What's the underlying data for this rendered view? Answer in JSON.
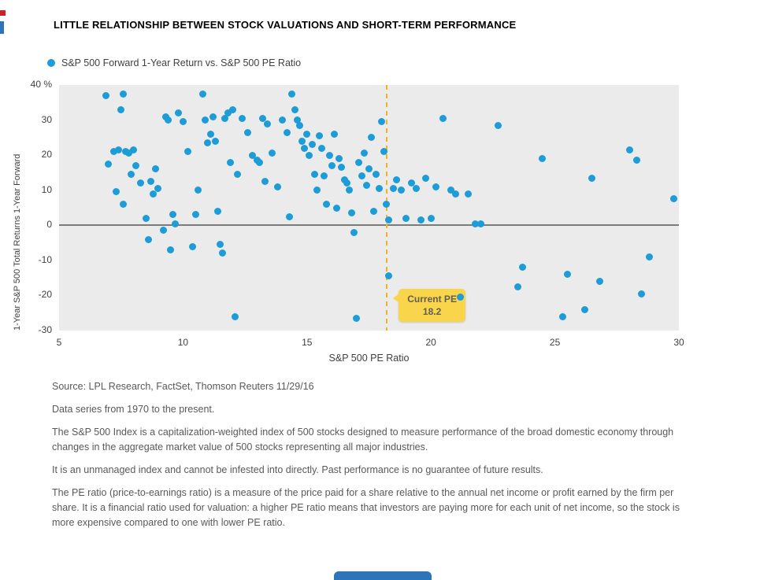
{
  "title": "LITTLE RELATIONSHIP BETWEEN STOCK VALUATIONS AND SHORT-TERM PERFORMANCE",
  "legend": {
    "label": "S&P 500 Forward 1-Year Return vs. S&P 500 PE Ratio"
  },
  "chart_data": {
    "type": "scatter",
    "title": "S&P 500 Forward 1-Year Return vs. S&P 500 PE Ratio",
    "xlabel": "S&P 500 PE Ratio",
    "ylabel": "1-Year S&P 500 Total Returns 1-Year Forward",
    "xlim": [
      5,
      30
    ],
    "ylim": [
      -30,
      40
    ],
    "x_ticks": [
      5,
      10,
      15,
      20,
      25,
      30
    ],
    "y_ticks": [
      {
        "v": 40,
        "label": "40 %"
      },
      {
        "v": 30,
        "label": "30"
      },
      {
        "v": 20,
        "label": "20"
      },
      {
        "v": 10,
        "label": "10"
      },
      {
        "v": 0,
        "label": "0"
      },
      {
        "v": -10,
        "label": "-10"
      },
      {
        "v": -20,
        "label": "-20"
      },
      {
        "v": -30,
        "label": "-30"
      }
    ],
    "grid": false,
    "legend_position": "top-left",
    "zero_line": 0,
    "current_pe": 18.2,
    "annotation": {
      "line1": "Current PE",
      "line2": "18.2",
      "anchor_x": 18.7,
      "anchor_y": -18
    },
    "colors": {
      "dot": "#1d9cd8",
      "plot_bg": "#ebebeb",
      "dashed_line": "#f0b323",
      "annotation_bg": "#f8d54b",
      "zero_line": "#7b7b7b"
    },
    "points": [
      [
        6.9,
        37
      ],
      [
        7.5,
        33
      ],
      [
        7.6,
        37.5
      ],
      [
        7.0,
        17.5
      ],
      [
        7.2,
        21
      ],
      [
        7.4,
        21.5
      ],
      [
        7.7,
        21
      ],
      [
        7.8,
        20.5
      ],
      [
        7.3,
        9.5
      ],
      [
        7.6,
        6
      ],
      [
        7.9,
        14.5
      ],
      [
        8.0,
        21.5
      ],
      [
        8.1,
        17
      ],
      [
        8.3,
        12
      ],
      [
        8.5,
        2
      ],
      [
        8.6,
        -4
      ],
      [
        8.7,
        12.5
      ],
      [
        8.8,
        9
      ],
      [
        8.9,
        16
      ],
      [
        9.0,
        10.5
      ],
      [
        9.2,
        -1.5
      ],
      [
        9.3,
        31
      ],
      [
        9.4,
        30
      ],
      [
        9.5,
        -7
      ],
      [
        9.6,
        3
      ],
      [
        9.7,
        0.5
      ],
      [
        9.8,
        32
      ],
      [
        10.0,
        29.5
      ],
      [
        10.2,
        21
      ],
      [
        10.4,
        -6
      ],
      [
        10.5,
        3
      ],
      [
        10.6,
        10
      ],
      [
        10.8,
        37.5
      ],
      [
        10.9,
        30
      ],
      [
        11.0,
        23.5
      ],
      [
        11.1,
        26
      ],
      [
        11.2,
        31
      ],
      [
        11.3,
        24
      ],
      [
        11.4,
        4
      ],
      [
        11.5,
        -5.5
      ],
      [
        11.6,
        -8
      ],
      [
        11.7,
        30.5
      ],
      [
        11.8,
        32
      ],
      [
        11.9,
        18
      ],
      [
        12.0,
        33
      ],
      [
        12.1,
        -26
      ],
      [
        12.2,
        14.5
      ],
      [
        12.4,
        30.5
      ],
      [
        12.6,
        26.5
      ],
      [
        12.8,
        20
      ],
      [
        13.0,
        18.5
      ],
      [
        13.1,
        18
      ],
      [
        13.2,
        30.5
      ],
      [
        13.3,
        12.5
      ],
      [
        13.4,
        29
      ],
      [
        13.6,
        20.5
      ],
      [
        13.8,
        11
      ],
      [
        14.0,
        30
      ],
      [
        14.2,
        26.5
      ],
      [
        14.3,
        2.5
      ],
      [
        14.4,
        37.5
      ],
      [
        14.5,
        33
      ],
      [
        14.6,
        30
      ],
      [
        14.7,
        28.5
      ],
      [
        14.8,
        24
      ],
      [
        14.9,
        22
      ],
      [
        15.0,
        26
      ],
      [
        15.1,
        20
      ],
      [
        15.2,
        23
      ],
      [
        15.3,
        14.5
      ],
      [
        15.4,
        10
      ],
      [
        15.5,
        25.5
      ],
      [
        15.6,
        22
      ],
      [
        15.7,
        14
      ],
      [
        15.8,
        6
      ],
      [
        15.9,
        20
      ],
      [
        16.0,
        17
      ],
      [
        16.1,
        26
      ],
      [
        16.2,
        5
      ],
      [
        16.3,
        19
      ],
      [
        16.4,
        16.5
      ],
      [
        16.5,
        13
      ],
      [
        16.6,
        12
      ],
      [
        16.7,
        10
      ],
      [
        16.8,
        3.5
      ],
      [
        16.9,
        -2
      ],
      [
        17.0,
        -26.5
      ],
      [
        17.1,
        18
      ],
      [
        17.2,
        14
      ],
      [
        17.3,
        20.5
      ],
      [
        17.4,
        11.5
      ],
      [
        17.5,
        16
      ],
      [
        17.6,
        25
      ],
      [
        17.7,
        4
      ],
      [
        17.8,
        14.5
      ],
      [
        17.9,
        10.5
      ],
      [
        18.0,
        29.5
      ],
      [
        18.1,
        21
      ],
      [
        18.2,
        6
      ],
      [
        18.3,
        1.5
      ],
      [
        18.3,
        -14.5
      ],
      [
        18.5,
        10.5
      ],
      [
        18.6,
        13
      ],
      [
        18.8,
        10
      ],
      [
        19.0,
        2
      ],
      [
        19.2,
        12
      ],
      [
        19.4,
        10.5
      ],
      [
        19.6,
        1.5
      ],
      [
        19.8,
        13.5
      ],
      [
        20.0,
        2
      ],
      [
        20.2,
        11
      ],
      [
        20.5,
        30.5
      ],
      [
        20.8,
        10
      ],
      [
        21.0,
        9
      ],
      [
        21.2,
        -20.5
      ],
      [
        21.5,
        9
      ],
      [
        21.8,
        0.5
      ],
      [
        22.0,
        0.5
      ],
      [
        22.7,
        28.5
      ],
      [
        23.5,
        -17.5
      ],
      [
        23.7,
        -12
      ],
      [
        24.5,
        19
      ],
      [
        25.3,
        -26
      ],
      [
        25.5,
        -14
      ],
      [
        26.2,
        -24
      ],
      [
        26.5,
        13.5
      ],
      [
        26.8,
        -16
      ],
      [
        28.0,
        21.5
      ],
      [
        28.3,
        18.5
      ],
      [
        28.5,
        -19.5
      ],
      [
        28.8,
        -9
      ],
      [
        29.8,
        7.5
      ]
    ]
  },
  "footer": {
    "source": "Source: LPL Research, FactSet, Thomson Reuters   11/29/16",
    "paragraphs": [
      "Data series from 1970 to the present.",
      "The S&P 500 Index is a capitalization-weighted index of 500 stocks designed to measure performance of the broad domestic economy through changes in the aggregate market value of 500 stocks representing all major industries.",
      "It is an unmanaged index and cannot be infested into directly. Past performance is no guarantee of future results.",
      "The PE ratio (price-to-earnings ratio) is a measure of the price paid for a share relative to the annual net income or profit earned by the firm per share. It is a financial ratio used for valuation: a higher PE ratio means that investors are paying more for each unit of net income, so the stock is more expensive compared to one with lower PE ratio."
    ]
  },
  "decor": {
    "red_mark_color": "#cf2027",
    "blue_mark_color": "#2d74b9",
    "bottom_bar_color": "#2d74b9"
  }
}
